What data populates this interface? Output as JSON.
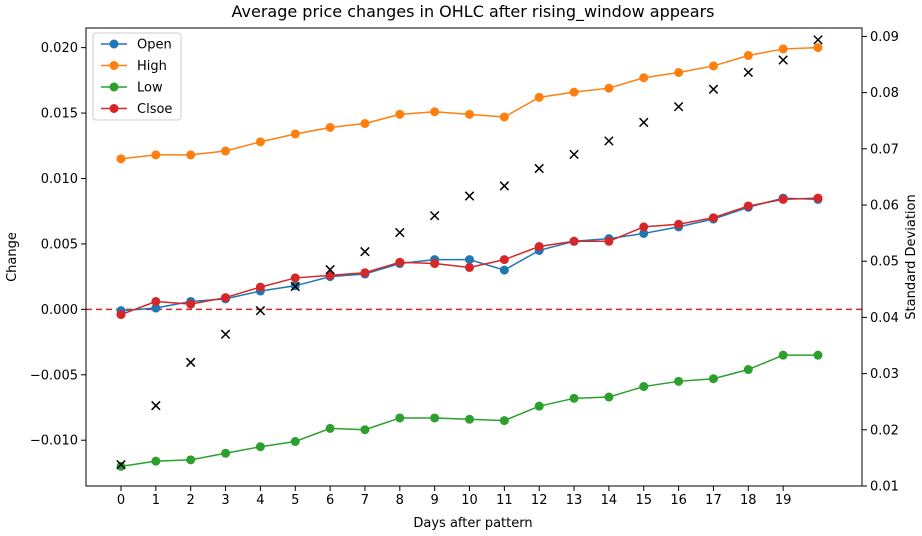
{
  "chart_data": {
    "type": "line",
    "title": "Average price changes in OHLC after rising_window appears",
    "xlabel": "Days after pattern",
    "ylabel": "Change",
    "y2label": "Standard Deviation",
    "x": [
      0,
      1,
      2,
      3,
      4,
      5,
      6,
      7,
      8,
      9,
      10,
      11,
      12,
      13,
      14,
      15,
      16,
      17,
      18,
      19,
      20
    ],
    "xticks": [
      "0",
      "1",
      "2",
      "3",
      "4",
      "5",
      "6",
      "7",
      "8",
      "9",
      "10",
      "11",
      "12",
      "13",
      "14",
      "15",
      "16",
      "17",
      "18",
      "19"
    ],
    "ylim": [
      -0.0135,
      0.0215
    ],
    "yticks": [
      "−0.010",
      "−0.005",
      "0.000",
      "0.005",
      "0.010",
      "0.015",
      "0.020"
    ],
    "ytick_values": [
      -0.01,
      -0.005,
      0.0,
      0.005,
      0.01,
      0.015,
      0.02
    ],
    "y2lim": [
      0.01,
      0.0915
    ],
    "y2ticks": [
      "0.01",
      "0.02",
      "0.03",
      "0.04",
      "0.05",
      "0.06",
      "0.07",
      "0.08",
      "0.09"
    ],
    "y2tick_values": [
      0.01,
      0.02,
      0.03,
      0.04,
      0.05,
      0.06,
      0.07,
      0.08,
      0.09
    ],
    "reference_line": {
      "y": 0.0,
      "style": "dashed",
      "color": "#d62728"
    },
    "legend_position": "top-left",
    "series": [
      {
        "name": "Open",
        "color": "#1f77b4",
        "values": [
          -0.0001,
          0.0001,
          0.0006,
          0.0008,
          0.0014,
          0.0018,
          0.0025,
          0.0027,
          0.0035,
          0.0038,
          0.0038,
          0.003,
          0.0045,
          0.0052,
          0.0054,
          0.0058,
          0.0063,
          0.0069,
          0.0078,
          0.0085,
          0.0084
        ]
      },
      {
        "name": "High",
        "color": "#ff7f0e",
        "values": [
          0.0115,
          0.0118,
          0.0118,
          0.0121,
          0.0128,
          0.0134,
          0.0139,
          0.0142,
          0.0149,
          0.0151,
          0.0149,
          0.0147,
          0.0162,
          0.0166,
          0.0169,
          0.0177,
          0.0181,
          0.0186,
          0.0194,
          0.0199,
          0.02
        ]
      },
      {
        "name": "Low",
        "color": "#2ca02c",
        "values": [
          -0.012,
          -0.0116,
          -0.0115,
          -0.011,
          -0.0105,
          -0.0101,
          -0.0091,
          -0.0092,
          -0.0083,
          -0.0083,
          -0.0084,
          -0.0085,
          -0.0074,
          -0.0068,
          -0.0067,
          -0.0059,
          -0.0055,
          -0.0053,
          -0.0046,
          -0.0035,
          -0.0035
        ]
      },
      {
        "name": "Clsoe",
        "color": "#d62728",
        "values": [
          -0.0004,
          0.0006,
          0.0004,
          0.0009,
          0.0017,
          0.0024,
          0.0026,
          0.0028,
          0.0036,
          0.0035,
          0.0032,
          0.0038,
          0.0048,
          0.0052,
          0.0052,
          0.0063,
          0.0065,
          0.007,
          0.0079,
          0.0084,
          0.0085
        ]
      }
    ],
    "std_series": {
      "marker": "x",
      "color": "#000000",
      "axis": "right",
      "values": [
        0.0138,
        0.0243,
        0.032,
        0.037,
        0.0412,
        0.0455,
        0.0485,
        0.0517,
        0.0551,
        0.0581,
        0.0616,
        0.0634,
        0.0665,
        0.069,
        0.0714,
        0.0747,
        0.0775,
        0.0806,
        0.0836,
        0.0858,
        0.0894
      ]
    }
  }
}
